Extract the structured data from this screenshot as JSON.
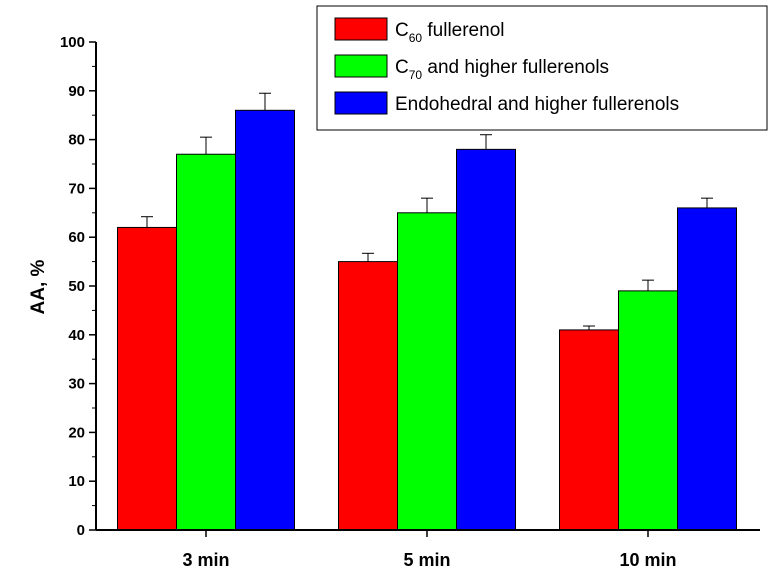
{
  "chart_data": {
    "type": "bar",
    "categories": [
      "3 min",
      "5 min",
      "10 min"
    ],
    "series": [
      {
        "name": "C60 fullerenol",
        "name_parts": {
          "base": "C",
          "sub": "60",
          "rest": " fullerenol"
        },
        "color": "#ff0000",
        "values": [
          62,
          55,
          41
        ],
        "errors": [
          2.2,
          1.7,
          0.8
        ]
      },
      {
        "name": "C70 and higher fullerenols",
        "name_parts": {
          "base": "C",
          "sub": "70",
          "rest": " and higher fullerenols"
        },
        "color": "#00ff00",
        "values": [
          77,
          65,
          49
        ],
        "errors": [
          3.5,
          3.0,
          2.2
        ]
      },
      {
        "name": "Endohedral and higher fullerenols",
        "name_parts": {
          "base": "Endohedral and higher fullerenols",
          "sub": "",
          "rest": ""
        },
        "color": "#0000ff",
        "values": [
          86,
          78,
          66
        ],
        "errors": [
          3.5,
          3.0,
          2.0
        ]
      }
    ],
    "title": "",
    "xlabel": "",
    "ylabel": "AA, %",
    "ylim": [
      0,
      100
    ],
    "yticks": [
      0,
      10,
      20,
      30,
      40,
      50,
      60,
      70,
      80,
      90,
      100
    ],
    "grid": false,
    "legend_position": "top-right"
  }
}
